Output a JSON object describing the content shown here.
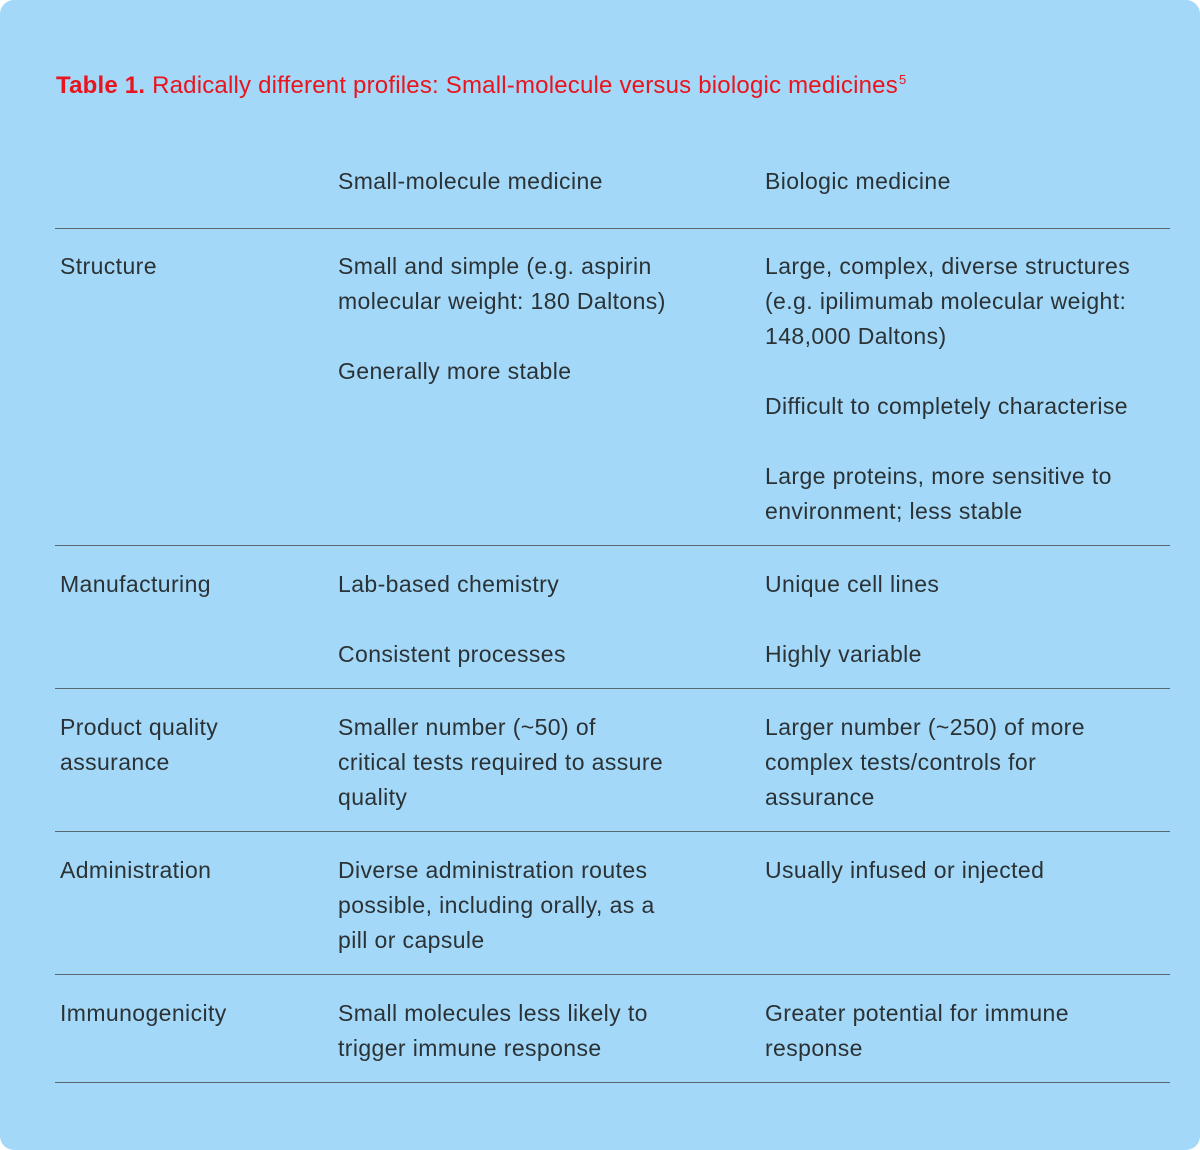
{
  "title": {
    "prefix": "Table 1.",
    "text": "Radically different profiles: Small-molecule versus biologic medicines",
    "footnote": "5"
  },
  "columns": [
    "",
    "Small-molecule medicine",
    "Biologic medicine"
  ],
  "rows": [
    {
      "label": "Structure",
      "small": [
        "Small and simple (e.g. aspirin molecular weight: 180 Daltons)",
        "Generally more stable"
      ],
      "biologic": [
        "Large, complex, diverse structures (e.g. ipilimumab molecular weight: 148,000 Daltons)",
        "Difficult to completely characterise",
        "Large proteins, more sensitive to environment; less stable"
      ]
    },
    {
      "label": "Manufacturing",
      "small": [
        "Lab-based chemistry",
        "Consistent processes"
      ],
      "biologic": [
        "Unique cell lines",
        "Highly variable"
      ]
    },
    {
      "label": "Product quality assurance",
      "small": [
        "Smaller number (~50) of critical tests required to assure quality"
      ],
      "biologic": [
        "Larger number (~250) of more complex tests/controls for assurance"
      ]
    },
    {
      "label": "Administration",
      "small": [
        "Diverse administration routes possible, including orally, as a pill or capsule"
      ],
      "biologic": [
        "Usually infused or injected"
      ]
    },
    {
      "label": "Immunogenicity",
      "small": [
        "Small molecules less likely to trigger immune response"
      ],
      "biologic": [
        "Greater potential for immune response"
      ]
    }
  ]
}
